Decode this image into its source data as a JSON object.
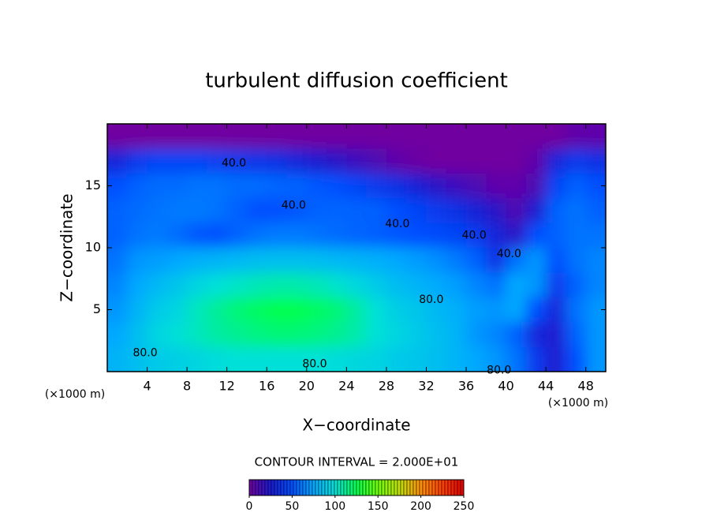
{
  "chart_data": {
    "type": "contour",
    "title": "turbulent diffusion coefficient",
    "xlabel": "X−coordinate",
    "ylabel": "Z−coordinate",
    "xunit": "(×1000 m)",
    "yunit": "(×1000 m)",
    "xlim": [
      0,
      50
    ],
    "ylim": [
      0,
      20
    ],
    "xticks": [
      4,
      8,
      12,
      16,
      20,
      24,
      28,
      32,
      36,
      40,
      44,
      48
    ],
    "yticks": [
      5,
      10,
      15
    ],
    "x": [
      1,
      3,
      5,
      7,
      9,
      11,
      13,
      15,
      17,
      19,
      21,
      23,
      25,
      27,
      29,
      31,
      33,
      35,
      37,
      39,
      41,
      43,
      45,
      47,
      49
    ],
    "y": [
      1,
      3,
      5,
      7,
      9,
      11,
      13,
      15,
      17,
      19
    ],
    "z": [
      [
        80,
        85,
        90,
        92,
        95,
        98,
        100,
        100,
        100,
        100,
        100,
        98,
        96,
        94,
        90,
        88,
        85,
        80,
        75,
        70,
        60,
        40,
        25,
        50,
        70
      ],
      [
        75,
        85,
        95,
        100,
        105,
        110,
        113,
        116,
        118,
        118,
        116,
        113,
        108,
        100,
        95,
        90,
        85,
        80,
        70,
        65,
        55,
        30,
        25,
        55,
        70
      ],
      [
        70,
        80,
        90,
        95,
        105,
        112,
        118,
        122,
        125,
        125,
        122,
        118,
        110,
        100,
        92,
        88,
        82,
        78,
        72,
        70,
        75,
        50,
        30,
        60,
        70
      ],
      [
        65,
        75,
        82,
        88,
        95,
        100,
        103,
        106,
        108,
        108,
        106,
        102,
        96,
        90,
        84,
        80,
        76,
        72,
        65,
        60,
        75,
        70,
        40,
        55,
        65
      ],
      [
        60,
        70,
        72,
        75,
        78,
        80,
        82,
        84,
        85,
        85,
        84,
        82,
        80,
        78,
        75,
        72,
        68,
        62,
        55,
        35,
        60,
        70,
        50,
        60,
        65
      ],
      [
        55,
        60,
        62,
        58,
        52,
        50,
        55,
        60,
        62,
        62,
        60,
        58,
        56,
        54,
        52,
        50,
        48,
        45,
        40,
        30,
        20,
        50,
        55,
        60,
        60
      ],
      [
        55,
        58,
        60,
        62,
        62,
        60,
        55,
        50,
        50,
        52,
        55,
        56,
        55,
        54,
        50,
        45,
        40,
        35,
        28,
        20,
        10,
        25,
        55,
        60,
        55
      ],
      [
        50,
        55,
        58,
        58,
        60,
        60,
        58,
        58,
        56,
        55,
        52,
        50,
        45,
        40,
        35,
        28,
        20,
        15,
        10,
        5,
        5,
        10,
        45,
        55,
        50
      ],
      [
        30,
        40,
        45,
        45,
        45,
        42,
        40,
        38,
        35,
        30,
        25,
        20,
        15,
        10,
        5,
        2,
        0,
        0,
        0,
        0,
        0,
        5,
        30,
        40,
        35
      ],
      [
        0,
        0,
        0,
        0,
        0,
        0,
        0,
        0,
        0,
        0,
        0,
        0,
        0,
        0,
        0,
        0,
        0,
        0,
        0,
        0,
        0,
        0,
        0,
        5,
        5
      ]
    ],
    "colormap": [
      "#7000a0",
      "#1a1ad0",
      "#0050ff",
      "#00a8ff",
      "#00e0d8",
      "#00ff50",
      "#70ff00",
      "#c0e000",
      "#ff9000",
      "#ff4000",
      "#e00000"
    ],
    "contour_labels": [
      {
        "x": 12.7,
        "y": 16.8,
        "value": 40,
        "label": "40.0"
      },
      {
        "x": 18.7,
        "y": 13.4,
        "value": 40,
        "label": "40.0"
      },
      {
        "x": 29.1,
        "y": 11.9,
        "value": 40,
        "label": "40.0"
      },
      {
        "x": 36.8,
        "y": 11.0,
        "value": 40,
        "label": "40.0"
      },
      {
        "x": 40.3,
        "y": 9.5,
        "value": 40,
        "label": "40.0"
      },
      {
        "x": 32.5,
        "y": 5.8,
        "value": 80,
        "label": "80.0"
      },
      {
        "x": 3.8,
        "y": 1.5,
        "value": 80,
        "label": "80.0"
      },
      {
        "x": 20.8,
        "y": 0.6,
        "value": 80,
        "label": "80.0"
      },
      {
        "x": 39.3,
        "y": 0.1,
        "value": 80,
        "label": "80.0"
      }
    ],
    "contour_interval_label": "CONTOUR INTERVAL = 2.000E+01",
    "colorbar": {
      "lim": [
        0,
        250
      ],
      "ticks": [
        0,
        50,
        100,
        150,
        200,
        250
      ]
    }
  }
}
